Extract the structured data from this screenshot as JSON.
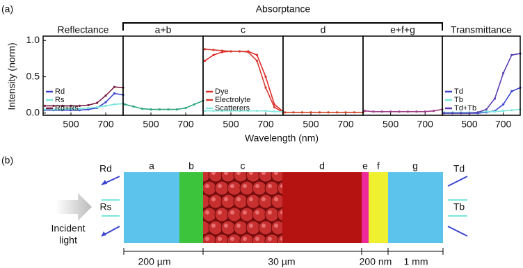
{
  "panel_label_a": "(a)",
  "absorptance_label": "Absorptance",
  "y_label": "Intensity (norm)",
  "x_label": "Wavelength (nm)",
  "chart_data": [
    {
      "type": "line",
      "title": "Reflectance",
      "x": [
        350,
        400,
        450,
        500,
        550,
        600,
        650,
        700,
        750,
        800
      ],
      "xlim": [
        340,
        800
      ],
      "xticks": [
        500,
        700
      ],
      "ylim": [
        -0.03,
        1.06
      ],
      "yticks": [
        {
          "value": 0,
          "label": "0.0"
        },
        0.5,
        {
          "value": 1,
          "label": "1.0"
        }
      ],
      "legend": "lower left",
      "series": [
        {
          "name": "Rd",
          "color": "#3a44d0",
          "values": [
            0.04,
            0.04,
            0.04,
            0.04,
            0.04,
            0.05,
            0.07,
            0.15,
            0.27,
            0.25
          ]
        },
        {
          "name": "Rs",
          "color": "#78e6dc",
          "values": [
            0.05,
            0.05,
            0.05,
            0.06,
            0.06,
            0.07,
            0.08,
            0.1,
            0.12,
            0.13
          ]
        },
        {
          "name": "Rd+Rs",
          "color": "#7a1f45",
          "values": [
            0.1,
            0.1,
            0.1,
            0.1,
            0.1,
            0.11,
            0.14,
            0.24,
            0.36,
            0.35
          ]
        }
      ]
    },
    {
      "type": "line",
      "title": "a+b",
      "x": [
        350,
        400,
        450,
        500,
        550,
        600,
        650,
        700,
        750,
        800
      ],
      "xlim": [
        340,
        800
      ],
      "xticks": [
        500,
        700
      ],
      "ylim": [
        -0.03,
        1.06
      ],
      "series": [
        {
          "color": "#2aa87a",
          "values": [
            0.12,
            0.09,
            0.06,
            0.05,
            0.05,
            0.05,
            0.05,
            0.07,
            0.12,
            0.17
          ]
        }
      ]
    },
    {
      "type": "line",
      "title": "c",
      "x": [
        350,
        400,
        450,
        500,
        550,
        600,
        650,
        700,
        750,
        800
      ],
      "xlim": [
        340,
        800
      ],
      "xticks": [
        500,
        700
      ],
      "ylim": [
        -0.03,
        1.06
      ],
      "legend": "lower left",
      "series": [
        {
          "name": "Dye",
          "color": "#e02a2a",
          "values": [
            0.72,
            0.8,
            0.84,
            0.85,
            0.85,
            0.85,
            0.8,
            0.5,
            0.12,
            0.02
          ]
        },
        {
          "name": "Electrolyte",
          "color": "#d43a30",
          "values": [
            0.88,
            0.87,
            0.86,
            0.85,
            0.85,
            0.84,
            0.72,
            0.35,
            0.08,
            0.01
          ]
        },
        {
          "name": "Scatterers",
          "color": "#86e8df",
          "values": [
            0.03,
            0.03,
            0.03,
            0.03,
            0.03,
            0.03,
            0.03,
            0.03,
            0.02,
            0.02
          ]
        }
      ]
    },
    {
      "type": "line",
      "title": "d",
      "x": [
        350,
        400,
        450,
        500,
        550,
        600,
        650,
        700,
        750,
        800
      ],
      "xlim": [
        340,
        800
      ],
      "xticks": [
        500,
        700
      ],
      "ylim": [
        -0.03,
        1.06
      ],
      "series": [
        {
          "color": "#d04020",
          "values": [
            0.01,
            0.01,
            0.01,
            0.01,
            0.01,
            0.01,
            0.01,
            0.01,
            0.01,
            0.01
          ]
        }
      ]
    },
    {
      "type": "line",
      "title": "e+f+g",
      "x": [
        350,
        400,
        450,
        500,
        550,
        600,
        650,
        700,
        750,
        800
      ],
      "xlim": [
        340,
        800
      ],
      "xticks": [
        500,
        700
      ],
      "ylim": [
        -0.03,
        1.06
      ],
      "series": [
        {
          "color": "#a03a8a",
          "values": [
            0.03,
            0.02,
            0.02,
            0.02,
            0.02,
            0.02,
            0.02,
            0.02,
            0.03,
            0.05
          ]
        }
      ]
    },
    {
      "type": "line",
      "title": "Transmittance",
      "x": [
        350,
        400,
        450,
        500,
        550,
        600,
        650,
        700,
        750,
        800
      ],
      "xlim": [
        340,
        800
      ],
      "xticks": [
        500,
        700
      ],
      "ylim": [
        -0.03,
        1.06
      ],
      "legend": "lower left",
      "series": [
        {
          "name": "Td",
          "color": "#3a44d0",
          "values": [
            0,
            0,
            0,
            0,
            0,
            0.01,
            0.03,
            0.12,
            0.3,
            0.35
          ]
        },
        {
          "name": "Tb",
          "color": "#78e6dc",
          "values": [
            0.01,
            0.01,
            0.01,
            0.01,
            0.01,
            0.02,
            0.02,
            0.03,
            0.04,
            0.05
          ]
        },
        {
          "name": "Td+Tb",
          "color": "#5a3cb0",
          "values": [
            0,
            0,
            0,
            0,
            0.01,
            0.05,
            0.2,
            0.55,
            0.8,
            0.82
          ]
        }
      ]
    }
  ],
  "diagram": {
    "panel_label": "(b)",
    "layers": [
      "a",
      "b",
      "c",
      "d",
      "e",
      "f",
      "g"
    ],
    "left_labels": [
      "Rd",
      "Rs"
    ],
    "right_labels": [
      "Td",
      "Tb"
    ],
    "incident_light": [
      "Incident",
      "light"
    ],
    "scale_labels": [
      "200 µm",
      "30 µm",
      "200 nm",
      "1 mm"
    ]
  }
}
